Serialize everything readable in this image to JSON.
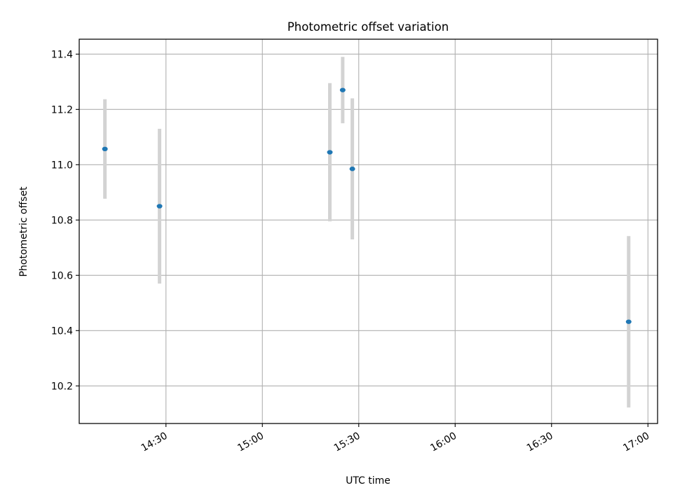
{
  "chart_data": {
    "type": "scatter",
    "title": "Photometric offset variation",
    "xlabel": "UTC time",
    "ylabel": "Photometric offset",
    "x_ticks": [
      "14:30",
      "15:00",
      "15:30",
      "16:00",
      "16:30",
      "17:00"
    ],
    "y_ticks": [
      "10.2",
      "10.4",
      "10.6",
      "10.8",
      "11.0",
      "11.2",
      "11.4"
    ],
    "xlim": [
      "14:03",
      "17:03"
    ],
    "ylim": [
      10.064,
      11.454
    ],
    "grid": true,
    "series": [
      {
        "points": [
          {
            "x": "14:11",
            "y": 11.057,
            "err": 0.18
          },
          {
            "x": "14:28",
            "y": 10.85,
            "err": 0.28
          },
          {
            "x": "15:21",
            "y": 11.045,
            "err": 0.25
          },
          {
            "x": "15:25",
            "y": 11.27,
            "err": 0.12
          },
          {
            "x": "15:28",
            "y": 10.985,
            "err": 0.255
          },
          {
            "x": "16:54",
            "y": 10.432,
            "err": 0.31
          }
        ]
      }
    ],
    "colors": {
      "point": "#1f77b4",
      "errorbar": "#d3d3d3",
      "grid": "#b0b0b0",
      "axes": "#000000"
    }
  }
}
